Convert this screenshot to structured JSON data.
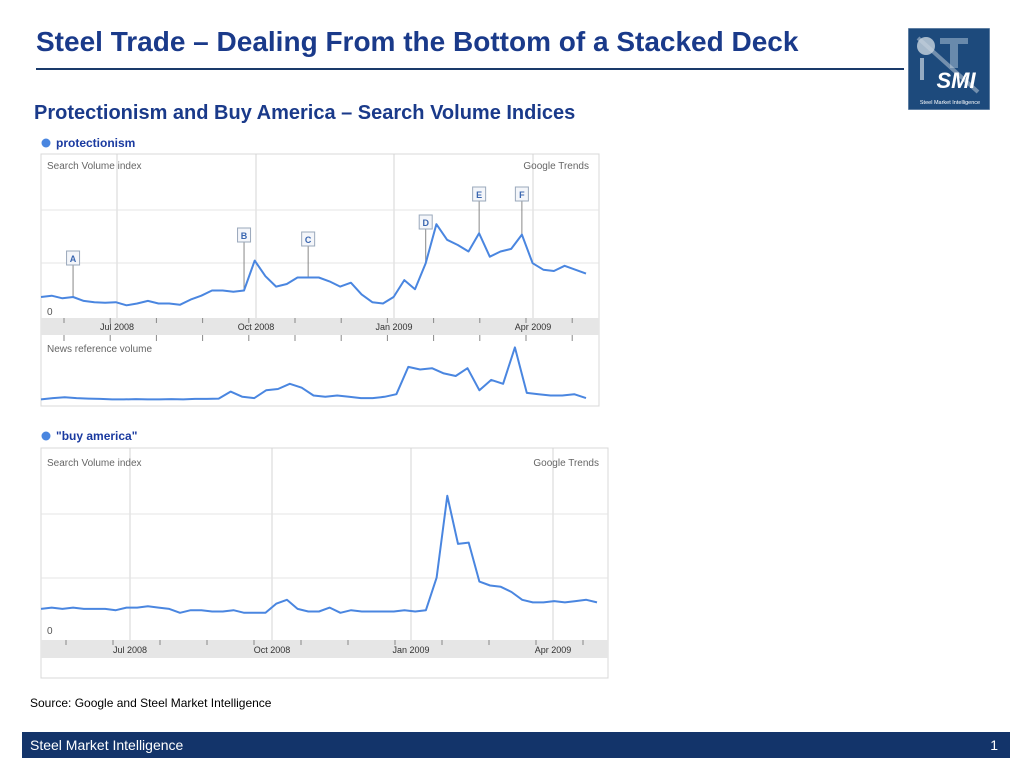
{
  "slide": {
    "title": "Steel Trade – Dealing From the Bottom of a Stacked Deck",
    "subtitle": "Protectionism and Buy America – Search Volume Indices",
    "source": "Source: Google and Steel Market Intelligence",
    "footer_label": "Steel Market Intelligence",
    "page_number": "1",
    "logo": {
      "text": "SMI",
      "tagline": "Steel Market Intelligence",
      "color": "#1d4a7c"
    }
  },
  "chart_data": [
    {
      "type": "line",
      "title": "protectionism",
      "top_label": "Search Volume index",
      "brand": "Google Trends",
      "bottom_label": "News reference volume",
      "zero_label": "0",
      "x_ticks": [
        "Jul 2008",
        "Oct 2008",
        "Jan 2009",
        "Apr 2009"
      ],
      "color": "#4a86e0",
      "series": [
        {
          "name": "Search Volume index",
          "values": [
            5,
            5.5,
            4.5,
            5,
            3.5,
            3,
            2.8,
            3,
            1.8,
            2.5,
            3.5,
            2.5,
            2.5,
            2,
            4,
            5.5,
            7.5,
            7.5,
            7,
            7.5,
            19,
            13,
            9,
            10,
            12.5,
            12.5,
            12.5,
            11,
            9,
            10.5,
            6,
            3,
            2.5,
            5,
            11.5,
            8,
            18,
            33,
            27,
            25,
            22.5,
            29.5,
            20.5,
            22.5,
            23.5,
            29,
            18,
            15.5,
            15,
            17,
            15.5,
            14
          ]
        },
        {
          "name": "News reference volume",
          "values": [
            1,
            1.5,
            1.8,
            1.5,
            1.3,
            1.2,
            1,
            1,
            1.1,
            1,
            1,
            1.1,
            1,
            1.2,
            1.2,
            1.3,
            4,
            2,
            1.5,
            4.5,
            5,
            7,
            5.5,
            2.5,
            2,
            2.5,
            2,
            1.5,
            1.5,
            2,
            3,
            13.5,
            12.5,
            13,
            11,
            10,
            13,
            4.5,
            8.5,
            7,
            21,
            3.5,
            3,
            2.5,
            2.5,
            3,
            1.5
          ]
        }
      ],
      "markers": [
        "A",
        "B",
        "C",
        "D",
        "E",
        "F"
      ]
    },
    {
      "type": "line",
      "title": "\"buy america\"",
      "top_label": "Search Volume index",
      "brand": "Google Trends",
      "zero_label": "0",
      "x_ticks": [
        "Jul 2008",
        "Oct 2008",
        "Jan 2009",
        "Apr 2009"
      ],
      "color": "#4a86e0",
      "series": [
        {
          "name": "Search Volume index",
          "values": [
            8.5,
            9,
            8.5,
            9,
            8.5,
            8.5,
            8.5,
            8,
            9,
            9,
            9.5,
            9,
            8.5,
            7,
            8,
            8,
            7.5,
            7.5,
            8,
            7,
            7,
            7,
            10.5,
            12,
            8.5,
            7.5,
            7.5,
            9,
            7,
            8,
            7.5,
            7.5,
            7.5,
            7.5,
            8,
            7.5,
            8,
            20.5,
            52,
            33.5,
            34,
            19,
            17.5,
            17,
            15,
            12,
            11,
            11,
            11.5,
            11,
            11.5,
            12,
            11
          ]
        }
      ]
    }
  ]
}
